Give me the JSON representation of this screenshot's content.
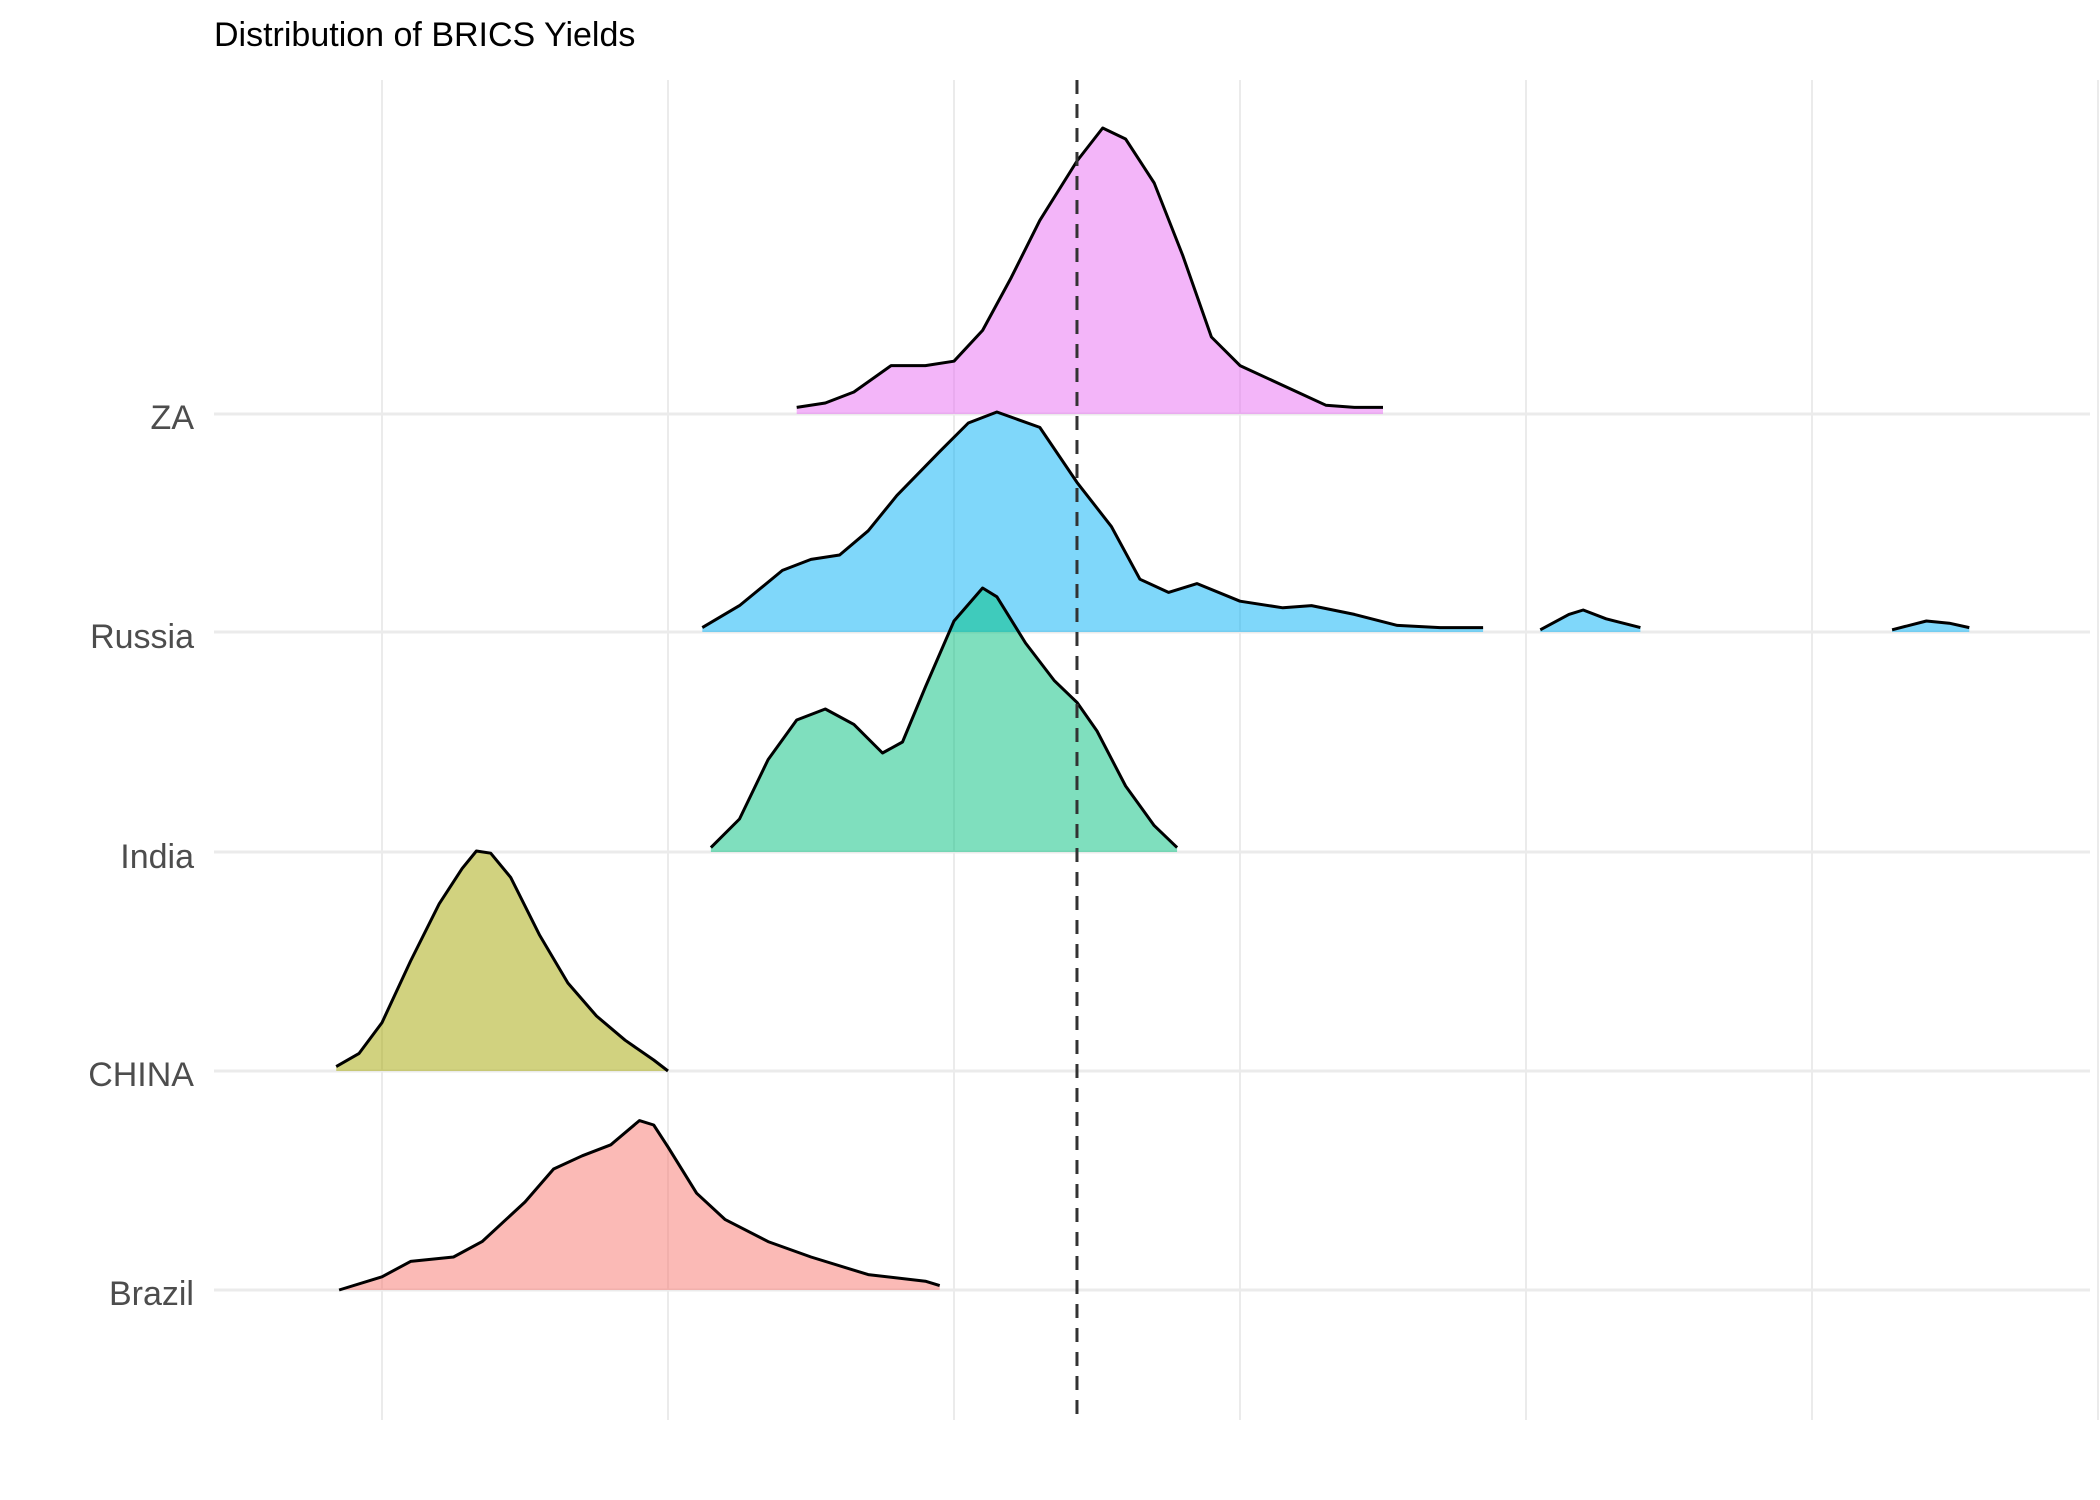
{
  "chart_data": {
    "type": "ridgeline",
    "title": "Distribution of BRICS Yields",
    "xlabel": "",
    "ylabel": "",
    "xlim": [
      -0.1,
      6.1
    ],
    "x_tick_labels_shown": false,
    "x_gridlines": [
      0,
      1,
      2,
      3,
      4,
      5,
      6
    ],
    "grid": true,
    "legend": "none",
    "reference_line": {
      "x": 2.43,
      "style": "dashed",
      "color": "#333333"
    },
    "series": [
      {
        "name": "Brazil",
        "color": "#F8766D",
        "points": [
          [
            -0.15,
            0.0
          ],
          [
            0.0,
            0.06
          ],
          [
            0.1,
            0.13
          ],
          [
            0.25,
            0.15
          ],
          [
            0.35,
            0.22
          ],
          [
            0.5,
            0.4
          ],
          [
            0.6,
            0.55
          ],
          [
            0.7,
            0.61
          ],
          [
            0.8,
            0.66
          ],
          [
            0.9,
            0.77
          ],
          [
            0.95,
            0.75
          ],
          [
            1.0,
            0.65
          ],
          [
            1.1,
            0.44
          ],
          [
            1.2,
            0.32
          ],
          [
            1.35,
            0.22
          ],
          [
            1.5,
            0.15
          ],
          [
            1.7,
            0.07
          ],
          [
            1.9,
            0.04
          ],
          [
            1.95,
            0.02
          ]
        ]
      },
      {
        "name": "CHINA",
        "color": "#A3A500",
        "points": [
          [
            -0.16,
            0.02
          ],
          [
            -0.08,
            0.08
          ],
          [
            0.0,
            0.22
          ],
          [
            0.1,
            0.5
          ],
          [
            0.2,
            0.76
          ],
          [
            0.28,
            0.92
          ],
          [
            0.33,
            1.0
          ],
          [
            0.38,
            0.99
          ],
          [
            0.45,
            0.88
          ],
          [
            0.55,
            0.62
          ],
          [
            0.65,
            0.4
          ],
          [
            0.75,
            0.25
          ],
          [
            0.85,
            0.14
          ],
          [
            0.95,
            0.05
          ],
          [
            1.0,
            0.0
          ]
        ]
      },
      {
        "name": "India",
        "color": "#00BF7D",
        "points": [
          [
            1.15,
            0.02
          ],
          [
            1.25,
            0.15
          ],
          [
            1.35,
            0.42
          ],
          [
            1.45,
            0.6
          ],
          [
            1.55,
            0.65
          ],
          [
            1.65,
            0.58
          ],
          [
            1.75,
            0.45
          ],
          [
            1.82,
            0.5
          ],
          [
            1.9,
            0.75
          ],
          [
            2.0,
            1.05
          ],
          [
            2.1,
            1.2
          ],
          [
            2.15,
            1.16
          ],
          [
            2.25,
            0.95
          ],
          [
            2.35,
            0.78
          ],
          [
            2.43,
            0.68
          ],
          [
            2.5,
            0.55
          ],
          [
            2.6,
            0.3
          ],
          [
            2.7,
            0.12
          ],
          [
            2.78,
            0.02
          ]
        ]
      },
      {
        "name": "Russia",
        "color": "#00B0F6",
        "points": [
          [
            1.12,
            0.02
          ],
          [
            1.25,
            0.12
          ],
          [
            1.4,
            0.28
          ],
          [
            1.5,
            0.33
          ],
          [
            1.6,
            0.35
          ],
          [
            1.7,
            0.46
          ],
          [
            1.8,
            0.62
          ],
          [
            1.95,
            0.82
          ],
          [
            2.05,
            0.95
          ],
          [
            2.15,
            1.0
          ],
          [
            2.3,
            0.93
          ],
          [
            2.43,
            0.68
          ],
          [
            2.55,
            0.48
          ],
          [
            2.65,
            0.24
          ],
          [
            2.75,
            0.18
          ],
          [
            2.85,
            0.22
          ],
          [
            3.0,
            0.14
          ],
          [
            3.15,
            0.11
          ],
          [
            3.25,
            0.12
          ],
          [
            3.4,
            0.08
          ],
          [
            3.55,
            0.03
          ],
          [
            3.7,
            0.02
          ],
          [
            3.85,
            0.02
          ]
        ]
      },
      {
        "name": "Russia",
        "color": "#00B0F6",
        "points": [
          [
            4.05,
            0.01
          ],
          [
            4.15,
            0.08
          ],
          [
            4.2,
            0.1
          ],
          [
            4.28,
            0.06
          ],
          [
            4.4,
            0.02
          ]
        ]
      },
      {
        "name": "Russia",
        "color": "#00B0F6",
        "points": [
          [
            5.28,
            0.01
          ],
          [
            5.4,
            0.05
          ],
          [
            5.48,
            0.04
          ],
          [
            5.55,
            0.02
          ]
        ]
      },
      {
        "name": "ZA",
        "color": "#E76BF3",
        "points": [
          [
            1.45,
            0.03
          ],
          [
            1.55,
            0.05
          ],
          [
            1.65,
            0.1
          ],
          [
            1.78,
            0.22
          ],
          [
            1.9,
            0.22
          ],
          [
            2.0,
            0.24
          ],
          [
            2.1,
            0.38
          ],
          [
            2.2,
            0.62
          ],
          [
            2.3,
            0.88
          ],
          [
            2.43,
            1.15
          ],
          [
            2.52,
            1.3
          ],
          [
            2.6,
            1.25
          ],
          [
            2.7,
            1.05
          ],
          [
            2.8,
            0.72
          ],
          [
            2.9,
            0.35
          ],
          [
            3.0,
            0.22
          ],
          [
            3.1,
            0.16
          ],
          [
            3.2,
            0.1
          ],
          [
            3.3,
            0.04
          ],
          [
            3.4,
            0.03
          ],
          [
            3.5,
            0.03
          ]
        ]
      }
    ],
    "categories": [
      "Brazil",
      "CHINA",
      "India",
      "Russia",
      "ZA"
    ]
  }
}
